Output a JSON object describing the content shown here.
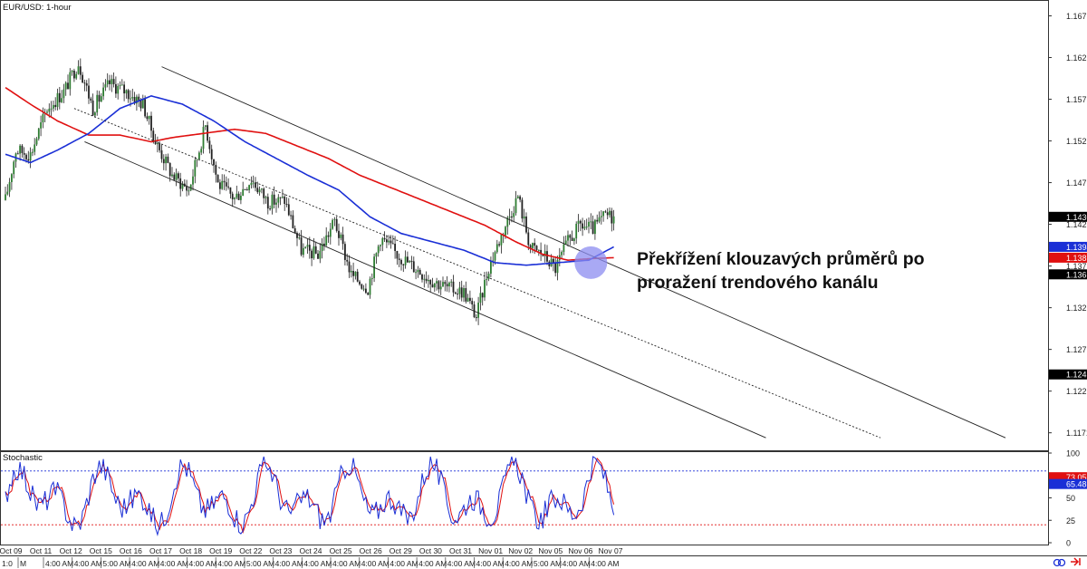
{
  "chart_data": [
    {
      "type": "candlestick",
      "title": "EUR/USD: 1-hour",
      "ylim": [
        1.115,
        1.169
      ],
      "y_ticks": [
        "1.1671",
        "1.1621",
        "1.1571",
        "1.1521",
        "1.1471",
        "1.1421",
        "1.1371",
        "1.1321",
        "1.1271",
        "1.1221",
        "1.1171"
      ],
      "price_tags": [
        {
          "label": "1.1430",
          "value": 1.143,
          "color": "#000000"
        },
        {
          "label": "1.1394",
          "value": 1.1394,
          "color": "#1a2fd6"
        },
        {
          "label": "1.1381",
          "value": 1.1381,
          "color": "#e01010"
        },
        {
          "label": "1.1361",
          "value": 1.1361,
          "color": "#000000"
        },
        {
          "label": "1.1241",
          "value": 1.1241,
          "color": "#000000"
        }
      ],
      "x_labels": [
        "Oct 09",
        "Oct 11",
        "Oct 12",
        "Oct 15",
        "Oct 16",
        "Oct 17",
        "Oct 18",
        "Oct 19",
        "Oct 22",
        "Oct 23",
        "Oct 24",
        "Oct 25",
        "Oct 26",
        "Oct 29",
        "Oct 30",
        "Oct 31",
        "Nov 01",
        "Nov 02",
        "Nov 05",
        "Nov 06",
        "Nov 07"
      ],
      "time_labels": [
        "1:0",
        "M",
        "4:00 AM",
        "4:00 AM",
        "5:00 AM",
        "4:00 AM",
        "4:00 AM",
        "4:00 AM",
        "4:00 AM",
        "5:00 AM",
        "4:00 AM",
        "4:00 AM",
        "4:00 AM",
        "4:00 AM",
        "4:00 AM",
        "4:00 AM",
        "4:00 AM",
        "4:00 AM",
        "4:00 AM",
        "5:00 AM",
        "4:00 AM",
        "4:00 AM"
      ],
      "price_anchors": [
        [
          0,
          1.145
        ],
        [
          5,
          1.151
        ],
        [
          12,
          1.1505
        ],
        [
          20,
          1.156
        ],
        [
          28,
          1.158
        ],
        [
          35,
          1.1615
        ],
        [
          42,
          1.156
        ],
        [
          50,
          1.159
        ],
        [
          58,
          1.158
        ],
        [
          66,
          1.1565
        ],
        [
          72,
          1.152
        ],
        [
          80,
          1.148
        ],
        [
          88,
          1.1462
        ],
        [
          96,
          1.154
        ],
        [
          102,
          1.147
        ],
        [
          110,
          1.1452
        ],
        [
          118,
          1.1475
        ],
        [
          126,
          1.1448
        ],
        [
          134,
          1.145
        ],
        [
          142,
          1.139
        ],
        [
          150,
          1.1385
        ],
        [
          158,
          1.1425
        ],
        [
          166,
          1.136
        ],
        [
          174,
          1.1345
        ],
        [
          180,
          1.1405
        ],
        [
          188,
          1.1385
        ],
        [
          196,
          1.137
        ],
        [
          204,
          1.1355
        ],
        [
          212,
          1.1345
        ],
        [
          220,
          1.134
        ],
        [
          226,
          1.131
        ],
        [
          232,
          1.137
        ],
        [
          240,
          1.142
        ],
        [
          246,
          1.1455
        ],
        [
          252,
          1.1393
        ],
        [
          258,
          1.1385
        ],
        [
          264,
          1.1368
        ],
        [
          270,
          1.14
        ],
        [
          276,
          1.142
        ],
        [
          282,
          1.1415
        ],
        [
          288,
          1.1432
        ],
        [
          292,
          1.143
        ]
      ],
      "ma_blue_anchors": [
        [
          0,
          1.1505
        ],
        [
          12,
          1.1495
        ],
        [
          25,
          1.151
        ],
        [
          40,
          1.153
        ],
        [
          55,
          1.156
        ],
        [
          70,
          1.1575
        ],
        [
          85,
          1.1565
        ],
        [
          100,
          1.1545
        ],
        [
          115,
          1.152
        ],
        [
          130,
          1.15
        ],
        [
          145,
          1.148
        ],
        [
          160,
          1.1462
        ],
        [
          175,
          1.143
        ],
        [
          190,
          1.141
        ],
        [
          205,
          1.14
        ],
        [
          220,
          1.139
        ],
        [
          235,
          1.1375
        ],
        [
          250,
          1.1372
        ],
        [
          265,
          1.1375
        ],
        [
          280,
          1.1378
        ],
        [
          292,
          1.1394
        ]
      ],
      "ma_red_anchors": [
        [
          0,
          1.1585
        ],
        [
          12,
          1.1565
        ],
        [
          25,
          1.1545
        ],
        [
          40,
          1.1528
        ],
        [
          55,
          1.1528
        ],
        [
          70,
          1.152
        ],
        [
          80,
          1.1525
        ],
        [
          95,
          1.153
        ],
        [
          110,
          1.1535
        ],
        [
          125,
          1.153
        ],
        [
          140,
          1.1515
        ],
        [
          155,
          1.15
        ],
        [
          170,
          1.148
        ],
        [
          185,
          1.1465
        ],
        [
          200,
          1.145
        ],
        [
          215,
          1.1435
        ],
        [
          230,
          1.142
        ],
        [
          245,
          1.14
        ],
        [
          258,
          1.1385
        ],
        [
          270,
          1.1378
        ],
        [
          282,
          1.138
        ],
        [
          292,
          1.1381
        ]
      ],
      "trendlines": [
        {
          "name": "upper channel",
          "from": [
            75,
            1.161
          ],
          "to": [
            480,
            1.1165
          ],
          "style": "solid"
        },
        {
          "name": "middle channel",
          "from": [
            33,
            1.156
          ],
          "to": [
            420,
            1.1165
          ],
          "style": "dashed"
        },
        {
          "name": "lower channel",
          "from": [
            38,
            1.152
          ],
          "to": [
            365,
            1.1165
          ],
          "style": "solid"
        }
      ],
      "highlight": {
        "index": 281,
        "value": 1.1375
      }
    },
    {
      "type": "line",
      "title": "Stochastic",
      "ylim": [
        0,
        100
      ],
      "y_ticks": [
        "100",
        "75",
        "50",
        "25",
        "0"
      ],
      "levels": [
        80,
        20
      ],
      "value_tags": [
        {
          "label": "73.05",
          "value": 73.05,
          "color": "#e01010"
        },
        {
          "label": "65.48",
          "value": 65.48,
          "color": "#1a2fd6"
        }
      ]
    }
  ],
  "annotation": {
    "line1": "Překřížení klouzavých průměrů po",
    "line2": "proražení trendového kanálu"
  },
  "colors": {
    "ma_blue": "#1a2fd6",
    "ma_red": "#e01010",
    "candle_up": "#2e7d32",
    "candle_down": "#222222",
    "highlight": "#8c8cf0",
    "grid": "#d8d8d8"
  },
  "icons": {
    "bottom_right": [
      "link-icon",
      "arrow-right-icon"
    ]
  }
}
